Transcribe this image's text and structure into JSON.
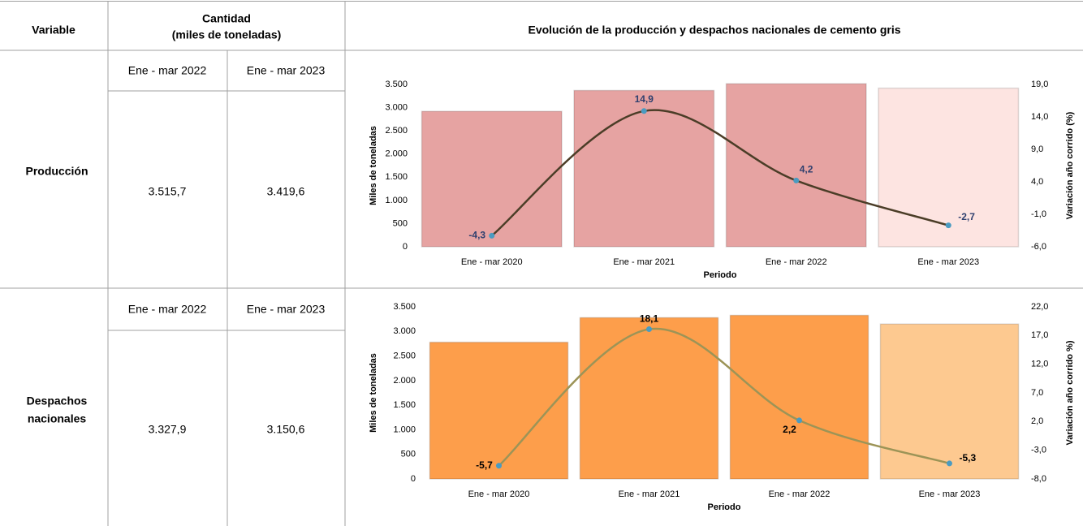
{
  "header": {
    "variable": "Variable",
    "quantity": "Cantidad",
    "quantity_unit": "(miles de toneladas)",
    "chart_title": "Evolución de la producción y despachos nacionales de cemento gris"
  },
  "rows": [
    {
      "name": [
        "Producción"
      ],
      "periods": [
        "Ene - mar 2022",
        "Ene - mar 2023"
      ],
      "values": [
        "3.515,7",
        "3.419,6"
      ]
    },
    {
      "name": [
        "Despachos",
        "nacionales"
      ],
      "periods": [
        "Ene - mar 2022",
        "Ene - mar 2023"
      ],
      "values": [
        "3.327,9",
        "3.150,6"
      ]
    }
  ],
  "chart_data": [
    {
      "type": "combo",
      "categories": [
        "Ene - mar 2020",
        "Ene - mar 2021",
        "Ene - mar 2022",
        "Ene - mar 2023"
      ],
      "xlabel": "Periodo",
      "ylabel": "Miles de toneladas",
      "y2label": "Variación año corrido  (%)",
      "ylim": [
        0,
        3500
      ],
      "yticks": [
        0,
        500,
        {
          "value": 1000,
          "label": "1.000"
        },
        {
          "value": 1500,
          "label": "1.500"
        },
        {
          "value": 2000,
          "label": "2.000"
        },
        {
          "value": 2500,
          "label": "2.500"
        },
        {
          "value": 3000,
          "label": "3.000"
        },
        {
          "value": 3500,
          "label": "3.500"
        }
      ],
      "y2lim": [
        -6,
        19
      ],
      "y2ticks": [
        {
          "value": -6,
          "label": "-6,0"
        },
        {
          "value": -1,
          "label": "-1,0"
        },
        {
          "value": 4,
          "label": "4,0"
        },
        {
          "value": 9,
          "label": "9,0"
        },
        {
          "value": 14,
          "label": "14,0"
        },
        {
          "value": 19,
          "label": "19,0"
        }
      ],
      "series": [
        {
          "type": "bar",
          "values": [
            2920,
            3370,
            3515.7,
            3419.6
          ],
          "colors": [
            "#e6a3a2",
            "#e6a3a2",
            "#e6a3a2",
            "#fde4e1"
          ]
        },
        {
          "type": "line",
          "axis": "y2",
          "color": "#4b3d27",
          "point_color": "#4a9bc1",
          "label_color": "#2e3f6e",
          "values": [
            -4.3,
            14.9,
            4.2,
            -2.7
          ],
          "value_labels": [
            "-4,3",
            "14,9",
            "4,2",
            "-2,7"
          ]
        }
      ]
    },
    {
      "type": "combo",
      "categories": [
        "Ene - mar 2020",
        "Ene - mar 2021",
        "Ene - mar 2022",
        "Ene - mar 2023"
      ],
      "xlabel": "Periodo",
      "ylabel": "Miles de toneladas",
      "y2label": "Variación año corrido  %)",
      "ylim": [
        0,
        3500
      ],
      "yticks": [
        0,
        500,
        {
          "value": 1000,
          "label": "1.000"
        },
        {
          "value": 1500,
          "label": "1.500"
        },
        {
          "value": 2000,
          "label": "2.000"
        },
        {
          "value": 2500,
          "label": "2.500"
        },
        {
          "value": 3000,
          "label": "3.000"
        },
        {
          "value": 3500,
          "label": "3.500"
        }
      ],
      "y2lim": [
        -8,
        22
      ],
      "y2ticks": [
        {
          "value": -8,
          "label": "-8,0"
        },
        {
          "value": -3,
          "label": "-3,0"
        },
        {
          "value": 2,
          "label": "2,0"
        },
        {
          "value": 7,
          "label": "7,0"
        },
        {
          "value": 12,
          "label": "12,0"
        },
        {
          "value": 17,
          "label": "17,0"
        },
        {
          "value": 22,
          "label": "22,0"
        }
      ],
      "series": [
        {
          "type": "bar",
          "values": [
            2780,
            3280,
            3327.9,
            3150.6
          ],
          "colors": [
            "#fd9e4b",
            "#fd9e4b",
            "#fd9e4b",
            "#fdc990"
          ]
        },
        {
          "type": "line",
          "axis": "y2",
          "color": "#9c9457",
          "point_color": "#4a9bc1",
          "label_color": "#000000",
          "values": [
            -5.7,
            18.1,
            2.2,
            -5.3
          ],
          "value_labels": [
            "-5,7",
            "18,1",
            "2,2",
            "-5,3"
          ]
        }
      ]
    }
  ]
}
